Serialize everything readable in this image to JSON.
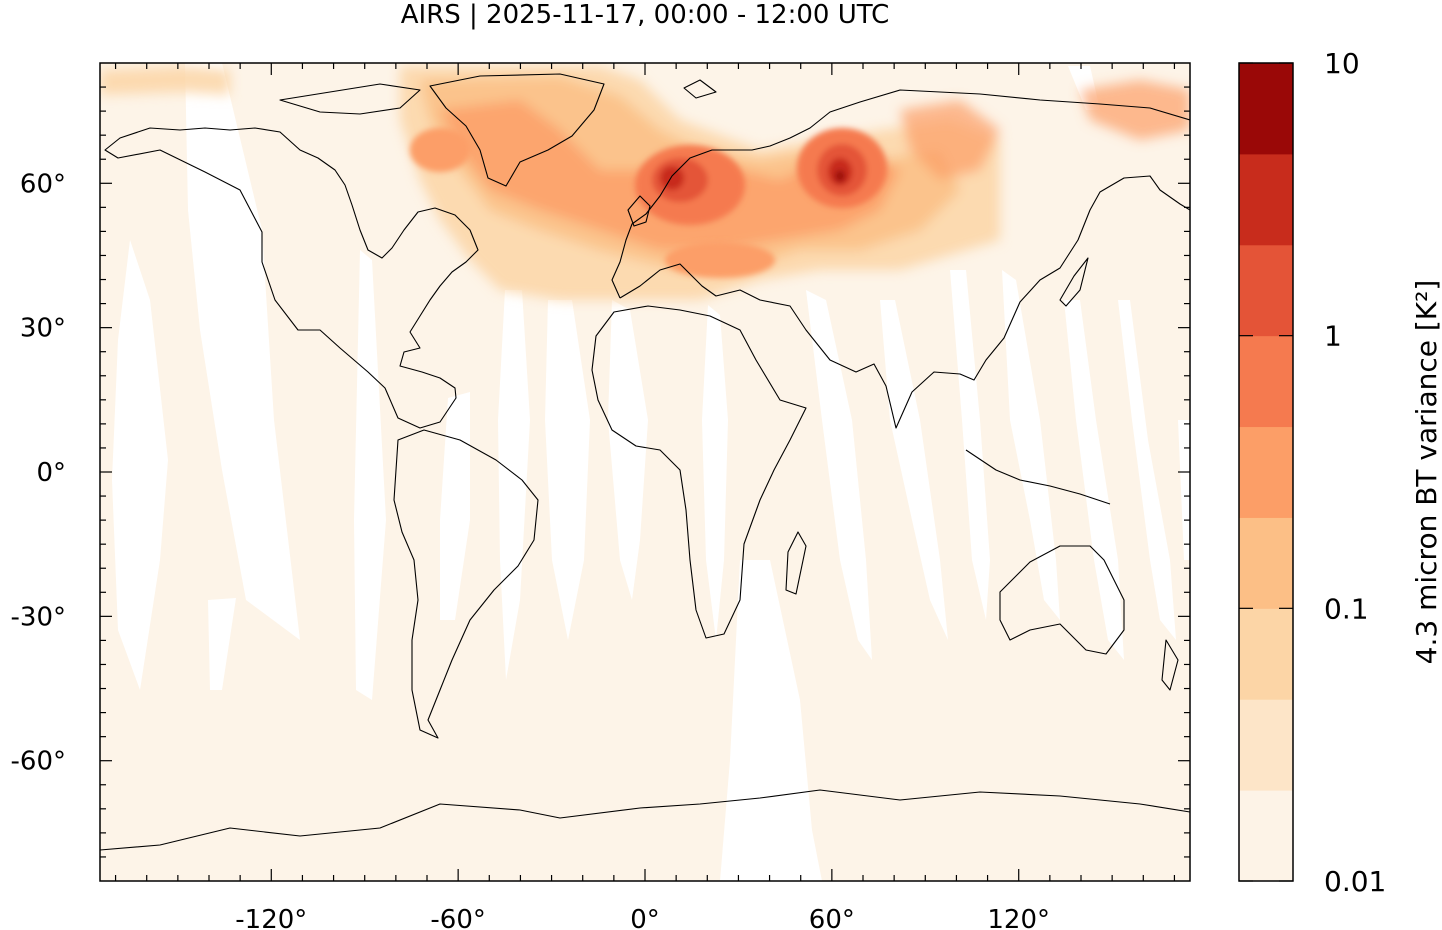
{
  "title": "AIRS | 2025-11-17, 00:00 - 12:00 UTC",
  "map": {
    "projection": "equirectangular",
    "lon_range": [
      -175,
      175
    ],
    "lat_range": [
      -85,
      85
    ],
    "x_ticks": [
      {
        "value": -120,
        "label": "-120°"
      },
      {
        "value": -60,
        "label": "-60°"
      },
      {
        "value": 0,
        "label": "0°"
      },
      {
        "value": 60,
        "label": "60°"
      },
      {
        "value": 120,
        "label": "120°"
      }
    ],
    "y_ticks": [
      {
        "value": 60,
        "label": "60°"
      },
      {
        "value": 30,
        "label": "30°"
      },
      {
        "value": 0,
        "label": "0°"
      },
      {
        "value": -30,
        "label": "-30°"
      },
      {
        "value": -60,
        "label": "-60°"
      }
    ],
    "background_color": "#fdf4e8",
    "swath_gap_color": "#ffffff",
    "coastline_color": "#000000"
  },
  "colorbar": {
    "label": "4.3 micron BT variance [K²]",
    "scale": "log",
    "range": [
      0.01,
      10
    ],
    "tick_labels": [
      "10",
      "1",
      "0.1",
      "0.01"
    ],
    "levels": [
      {
        "color": "#fdf3e7"
      },
      {
        "color": "#fde5c8"
      },
      {
        "color": "#fcd5a6"
      },
      {
        "color": "#fcbf86"
      },
      {
        "color": "#fc9e67"
      },
      {
        "color": "#f57a4f"
      },
      {
        "color": "#e45437"
      },
      {
        "color": "#c82c1c"
      },
      {
        "color": "#9a0807"
      }
    ]
  }
}
